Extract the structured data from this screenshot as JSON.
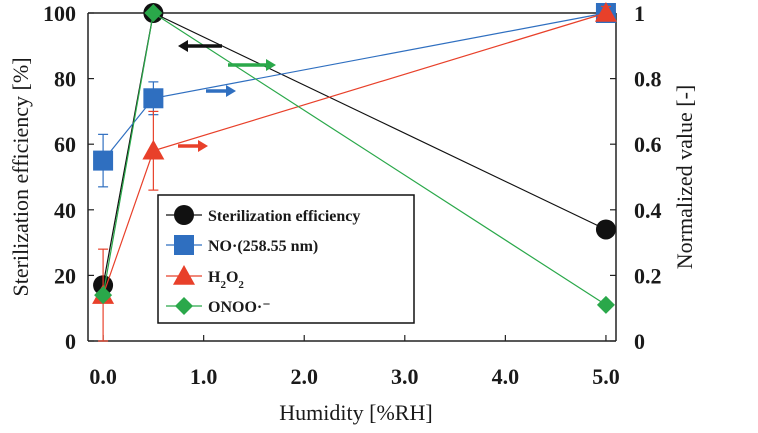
{
  "chart_data": {
    "type": "line",
    "x": [
      0.0,
      0.5,
      5.0
    ],
    "xlabel": "Humidity [%RH]",
    "ylabel_left": "Sterilization efficiency [%]",
    "ylabel_right": "Normalized value [-]",
    "xlim": [
      -0.15,
      5.1
    ],
    "ylim_left": [
      0,
      100
    ],
    "ylim_right": [
      0,
      1
    ],
    "x_ticks": [
      "0.0",
      "1.0",
      "2.0",
      "3.0",
      "4.0",
      "5.0"
    ],
    "x_tick_values": [
      0,
      1,
      2,
      3,
      4,
      5
    ],
    "y_left_ticks": [
      "0",
      "20",
      "40",
      "60",
      "80",
      "100"
    ],
    "y_left_tick_values": [
      0,
      20,
      40,
      60,
      80,
      100
    ],
    "y_right_ticks": [
      "0",
      "0.2",
      "0.4",
      "0.6",
      "0.8",
      "1"
    ],
    "y_right_tick_values": [
      0,
      0.2,
      0.4,
      0.6,
      0.8,
      1
    ],
    "grid": false,
    "legend_position": "bottom-left",
    "series": [
      {
        "key": "sterilization",
        "name": "Sterilization efficiency",
        "axis": "left",
        "marker": "circle",
        "color": "#111111",
        "values": [
          17,
          100,
          34
        ],
        "error": [
          0,
          0,
          0
        ]
      },
      {
        "key": "no",
        "name": "NO·(258.55 nm)",
        "axis": "right",
        "marker": "square",
        "color": "#2f6fc0",
        "values": [
          0.55,
          0.74,
          1.0
        ],
        "error": [
          0.08,
          0.05,
          0
        ]
      },
      {
        "key": "h2o2",
        "name": "H2O2",
        "axis": "right",
        "marker": "triangle",
        "color": "#e8402a",
        "values": [
          0.14,
          0.58,
          1.0
        ],
        "error": [
          0.14,
          0.12,
          0.02
        ]
      },
      {
        "key": "onoo",
        "name": "ONOO·⁻",
        "axis": "right",
        "marker": "diamond",
        "color": "#2aa84a",
        "values": [
          0.14,
          1.0,
          0.11
        ],
        "error": [
          0,
          0,
          0
        ]
      }
    ],
    "annotations": [
      {
        "type": "arrow",
        "direction": "left",
        "color": "#111111",
        "series": "sterilization"
      },
      {
        "type": "arrow",
        "direction": "right",
        "color": "#2aa84a",
        "series": "onoo"
      },
      {
        "type": "arrow",
        "direction": "right",
        "color": "#2f6fc0",
        "series": "no"
      },
      {
        "type": "arrow",
        "direction": "right",
        "color": "#e8402a",
        "series": "h2o2"
      }
    ]
  }
}
